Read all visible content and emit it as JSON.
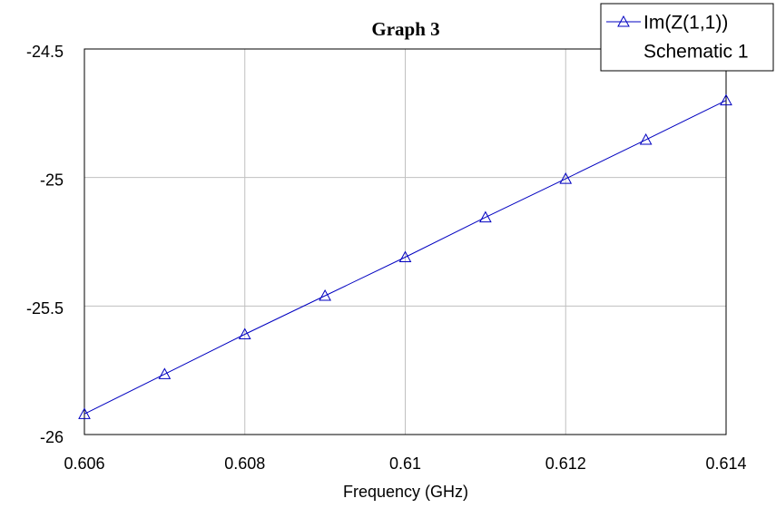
{
  "chart_data": {
    "type": "line",
    "title": "Graph 3",
    "x_label": "Frequency (GHz)",
    "x": [
      0.606,
      0.607,
      0.608,
      0.609,
      0.61,
      0.611,
      0.612,
      0.613,
      0.614
    ],
    "series": [
      {
        "name": "Im(Z(1,1))",
        "source": "Schematic 1",
        "color": "#0000c0",
        "marker": "triangle",
        "values": [
          -25.92,
          -25.765,
          -25.61,
          -25.46,
          -25.31,
          -25.155,
          -25.005,
          -24.853,
          -24.7
        ]
      }
    ],
    "xlim": [
      0.606,
      0.614
    ],
    "xticks": [
      0.606,
      0.608,
      0.61,
      0.612,
      0.614
    ],
    "ylim": [
      -26,
      -24.5
    ],
    "yticks": [
      -24.5,
      -25,
      -25.5,
      -26
    ],
    "grid": true,
    "legend": "top-right"
  }
}
